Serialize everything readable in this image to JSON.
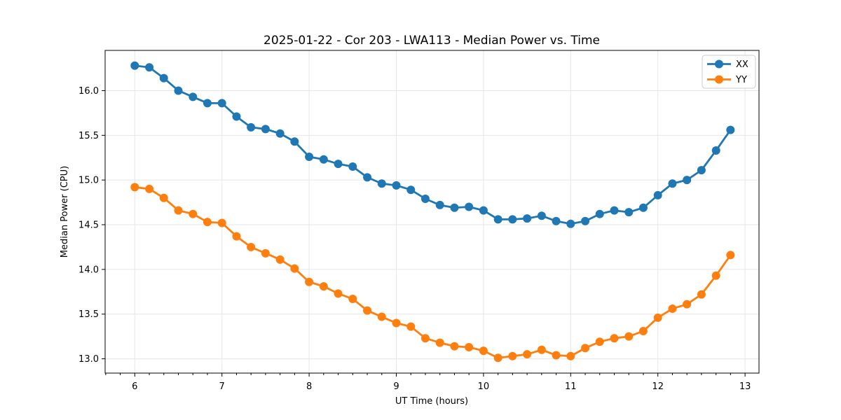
{
  "chart_data": {
    "type": "line",
    "title": "2025-01-22 - Cor 203 - LWA113 - Median Power vs. Time",
    "xlabel": "UT Time (hours)",
    "ylabel": "Median Power (CPU)",
    "xlim": [
      5.66,
      13.16
    ],
    "ylim": [
      12.84,
      16.45
    ],
    "xticks": [
      6,
      7,
      8,
      9,
      10,
      11,
      12,
      13
    ],
    "yticks": [
      13.0,
      13.5,
      14.0,
      14.5,
      15.0,
      15.5,
      16.0
    ],
    "x_minor_tick_step_hours": 0.16667,
    "grid": true,
    "legend_position": "upper right",
    "x": [
      6.0,
      6.167,
      6.333,
      6.5,
      6.667,
      6.833,
      7.0,
      7.167,
      7.333,
      7.5,
      7.667,
      7.833,
      8.0,
      8.167,
      8.333,
      8.5,
      8.667,
      8.833,
      9.0,
      9.167,
      9.333,
      9.5,
      9.667,
      9.833,
      10.0,
      10.167,
      10.333,
      10.5,
      10.667,
      10.833,
      11.0,
      11.167,
      11.333,
      11.5,
      11.667,
      11.833,
      12.0,
      12.167,
      12.333,
      12.5,
      12.667,
      12.833
    ],
    "series": [
      {
        "name": "XX",
        "color": "#1f77b4",
        "values": [
          16.28,
          16.26,
          16.14,
          16.0,
          15.93,
          15.86,
          15.86,
          15.71,
          15.59,
          15.57,
          15.52,
          15.43,
          15.26,
          15.23,
          15.18,
          15.15,
          15.03,
          14.96,
          14.94,
          14.89,
          14.79,
          14.72,
          14.69,
          14.7,
          14.66,
          14.56,
          14.56,
          14.57,
          14.6,
          14.54,
          14.51,
          14.54,
          14.62,
          14.66,
          14.64,
          14.69,
          14.83,
          14.96,
          15.0,
          15.11,
          15.33,
          15.56
        ]
      },
      {
        "name": "YY",
        "color": "#ff7f0e",
        "values": [
          14.92,
          14.9,
          14.8,
          14.66,
          14.62,
          14.53,
          14.52,
          14.37,
          14.25,
          14.18,
          14.11,
          14.01,
          13.86,
          13.81,
          13.73,
          13.67,
          13.54,
          13.47,
          13.4,
          13.36,
          13.23,
          13.18,
          13.14,
          13.13,
          13.09,
          13.01,
          13.03,
          13.05,
          13.1,
          13.04,
          13.03,
          13.12,
          13.19,
          13.23,
          13.25,
          13.31,
          13.46,
          13.56,
          13.61,
          13.72,
          13.93,
          14.16
        ]
      }
    ],
    "colors": {
      "background": "#ffffff",
      "grid": "#e6e6e6",
      "spine": "#000000",
      "legend_border": "#cccccc"
    }
  }
}
